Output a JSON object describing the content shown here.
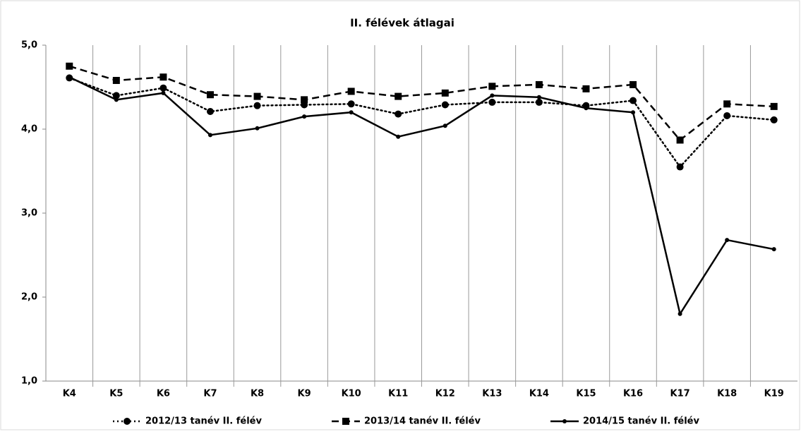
{
  "chart_data": {
    "type": "line",
    "title": "II. félévek átlagai",
    "categories": [
      "K4",
      "K5",
      "K6",
      "K7",
      "K8",
      "K9",
      "K10",
      "K11",
      "K12",
      "K13",
      "K14",
      "K15",
      "K16",
      "K17",
      "K18",
      "K19"
    ],
    "series": [
      {
        "name": "2012/13 tanév II. félév",
        "color": "#000000",
        "style": "dotted",
        "marker": "circle",
        "values": [
          4.61,
          4.4,
          4.49,
          4.21,
          4.28,
          4.29,
          4.3,
          4.18,
          4.29,
          4.32,
          4.32,
          4.28,
          4.34,
          3.55,
          4.16,
          4.11
        ]
      },
      {
        "name": "2013/14 tanév II. félév",
        "color": "#000000",
        "style": "dashed",
        "marker": "square",
        "values": [
          4.75,
          4.58,
          4.62,
          4.41,
          4.39,
          4.35,
          4.45,
          4.39,
          4.43,
          4.51,
          4.53,
          4.48,
          4.53,
          3.87,
          4.3,
          4.27
        ]
      },
      {
        "name": "2014/15 tanév II. félév",
        "color": "#000000",
        "style": "solid",
        "marker": "dot",
        "values": [
          4.62,
          4.35,
          4.43,
          3.93,
          4.01,
          4.15,
          4.2,
          3.91,
          4.04,
          4.4,
          4.38,
          4.25,
          4.2,
          1.8,
          2.68,
          2.57
        ]
      }
    ],
    "ylim": [
      1,
      5
    ],
    "yticks": [
      {
        "value": 1,
        "label": "1,0"
      },
      {
        "value": 2,
        "label": "2,0"
      },
      {
        "value": 3,
        "label": "3,0"
      },
      {
        "value": 4,
        "label": "4,0"
      },
      {
        "value": 5,
        "label": "5,0"
      }
    ],
    "grid": true,
    "legend": "bottom"
  }
}
